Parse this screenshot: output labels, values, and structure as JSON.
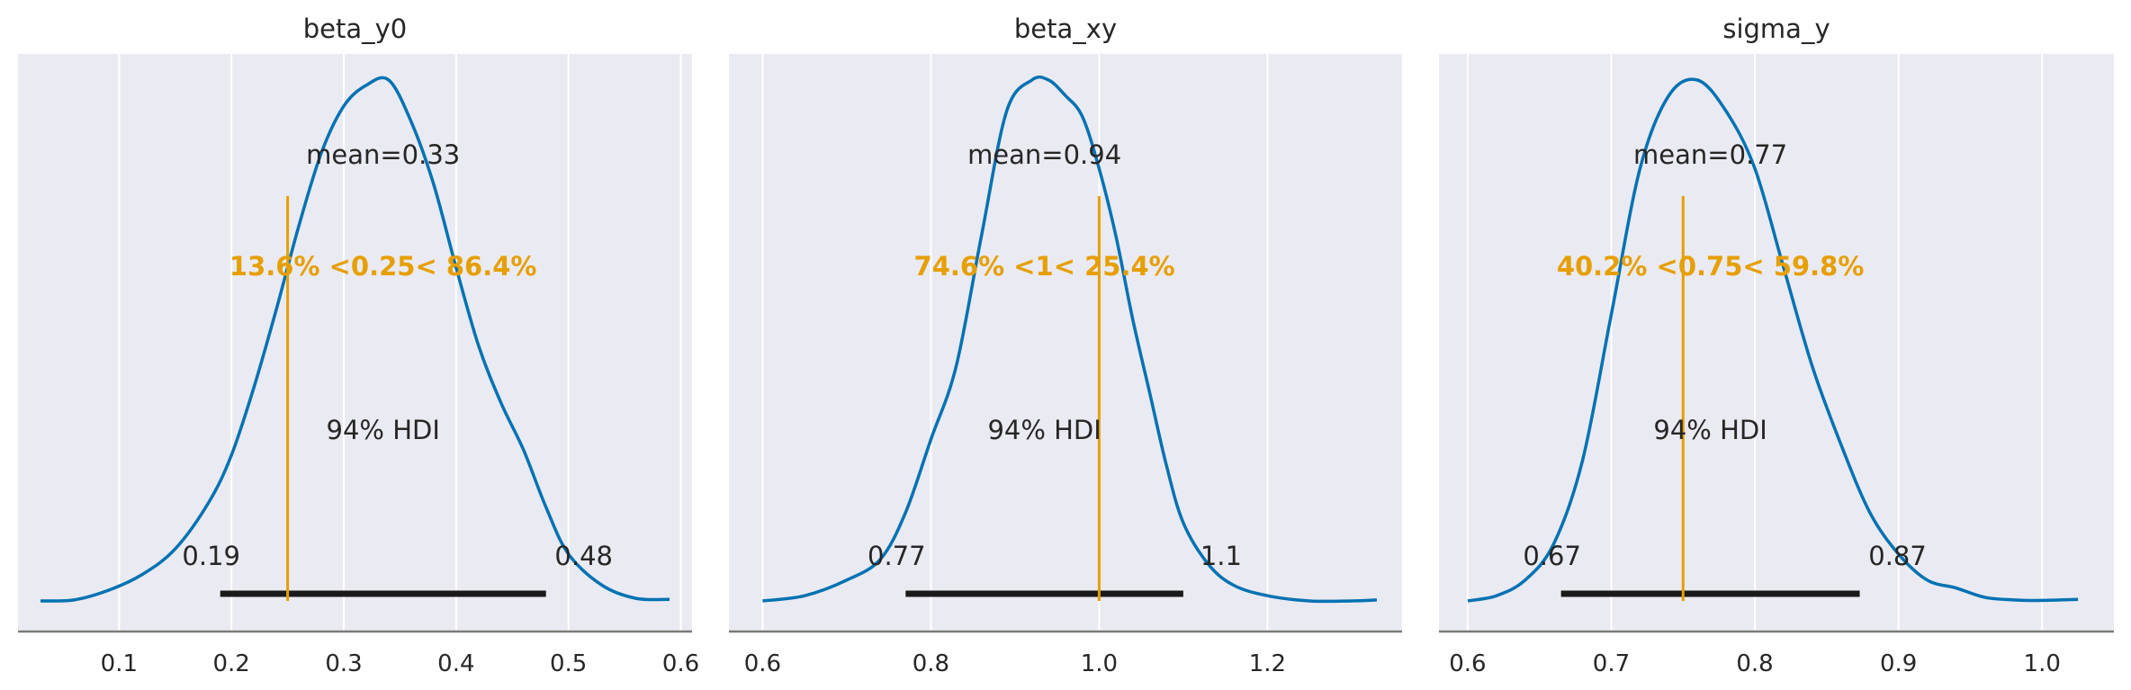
{
  "chart_data": [
    {
      "type": "area",
      "title": "beta_y0",
      "xlim": [
        0.01,
        0.61
      ],
      "xticks": [
        0.1,
        0.2,
        0.3,
        0.4,
        0.5,
        0.6
      ],
      "xtick_labels": [
        "0.1",
        "0.2",
        "0.3",
        "0.4",
        "0.5",
        "0.6"
      ],
      "grid": true,
      "density": {
        "x": [
          0.03,
          0.06,
          0.09,
          0.12,
          0.15,
          0.18,
          0.2,
          0.22,
          0.24,
          0.26,
          0.28,
          0.3,
          0.32,
          0.34,
          0.36,
          0.38,
          0.4,
          0.42,
          0.44,
          0.46,
          0.48,
          0.5,
          0.53,
          0.56,
          0.59
        ],
        "y": [
          0.0,
          0.002,
          0.02,
          0.05,
          0.1,
          0.19,
          0.28,
          0.41,
          0.56,
          0.72,
          0.86,
          0.95,
          0.99,
          1.0,
          0.92,
          0.8,
          0.64,
          0.49,
          0.38,
          0.29,
          0.18,
          0.09,
          0.03,
          0.005,
          0.003
        ]
      },
      "mean_label": "mean=0.33",
      "ref_value": 0.25,
      "ref_label": "13.6% <0.25< 86.4%",
      "hdi_label": "94% HDI",
      "hdi": [
        0.19,
        0.48
      ],
      "hdi_low_label": "0.19",
      "hdi_high_label": "0.48"
    },
    {
      "type": "area",
      "title": "beta_xy",
      "xlim": [
        0.56,
        1.36
      ],
      "xticks": [
        0.6,
        0.8,
        1.0,
        1.2
      ],
      "xtick_labels": [
        "0.6",
        "0.8",
        "1.0",
        "1.2"
      ],
      "grid": true,
      "density": {
        "x": [
          0.6,
          0.65,
          0.7,
          0.74,
          0.77,
          0.8,
          0.83,
          0.86,
          0.89,
          0.92,
          0.94,
          0.96,
          0.98,
          1.0,
          1.02,
          1.04,
          1.06,
          1.08,
          1.1,
          1.13,
          1.16,
          1.2,
          1.25,
          1.3,
          1.33
        ],
        "y": [
          0.0,
          0.01,
          0.04,
          0.08,
          0.17,
          0.31,
          0.45,
          0.7,
          0.94,
          1.0,
          1.0,
          0.97,
          0.93,
          0.83,
          0.7,
          0.54,
          0.4,
          0.26,
          0.15,
          0.07,
          0.03,
          0.01,
          0.0,
          0.0,
          0.002
        ]
      },
      "mean_label": "mean=0.94",
      "ref_value": 1.0,
      "ref_label": "74.6% <1< 25.4%",
      "hdi_label": "94% HDI",
      "hdi": [
        0.77,
        1.1
      ],
      "hdi_low_label": "0.77",
      "hdi_high_label": "1.1"
    },
    {
      "type": "area",
      "title": "sigma_y",
      "xlim": [
        0.58,
        1.05
      ],
      "xticks": [
        0.6,
        0.7,
        0.8,
        0.9,
        1.0
      ],
      "xtick_labels": [
        "0.6",
        "0.7",
        "0.8",
        "0.9",
        "1.0"
      ],
      "grid": true,
      "density": {
        "x": [
          0.6,
          0.62,
          0.64,
          0.66,
          0.68,
          0.7,
          0.72,
          0.74,
          0.76,
          0.78,
          0.8,
          0.82,
          0.84,
          0.86,
          0.88,
          0.9,
          0.92,
          0.94,
          0.96,
          0.98,
          1.0,
          1.025
        ],
        "y": [
          0.0,
          0.01,
          0.04,
          0.11,
          0.27,
          0.55,
          0.83,
          0.97,
          1.0,
          0.94,
          0.83,
          0.64,
          0.45,
          0.3,
          0.17,
          0.09,
          0.04,
          0.025,
          0.007,
          0.002,
          0.001,
          0.003
        ]
      },
      "mean_label": "mean=0.77",
      "ref_value": 0.75,
      "ref_label": "40.2% <0.75< 59.8%",
      "hdi_label": "94% HDI",
      "hdi": [
        0.665,
        0.873
      ],
      "hdi_low_label": "0.67",
      "hdi_high_label": "0.87"
    }
  ],
  "colors": {
    "kde": "#0072b2",
    "reference": "#e69f00",
    "hdi": "#1a1a1a",
    "background": "#eaeaf2",
    "grid": "#ffffff",
    "text": "#262626",
    "axis": "#7a7a7a"
  }
}
